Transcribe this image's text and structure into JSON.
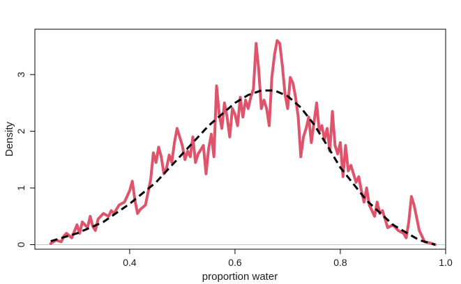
{
  "chart_data": {
    "type": "line",
    "title": "",
    "xlabel": "proportion water",
    "ylabel": "Density",
    "xlim": [
      0.22,
      1.0
    ],
    "ylim": [
      -0.08,
      3.8
    ],
    "x_ticks": [
      0.4,
      0.6,
      0.8,
      1.0
    ],
    "x_tick_labels": [
      "0.4",
      "0.6",
      "0.8",
      "1.0"
    ],
    "y_ticks": [
      0,
      1,
      2,
      3
    ],
    "y_tick_labels": [
      "0",
      "1",
      "2",
      "3"
    ],
    "baseline_y": 0,
    "grid": false,
    "legend": "none",
    "series": [
      {
        "style": "solid",
        "color": "#DF536B",
        "x": [
          0.25,
          0.26,
          0.27,
          0.275,
          0.28,
          0.29,
          0.3,
          0.305,
          0.31,
          0.32,
          0.325,
          0.33,
          0.335,
          0.34,
          0.35,
          0.36,
          0.365,
          0.37,
          0.38,
          0.39,
          0.4,
          0.405,
          0.41,
          0.415,
          0.42,
          0.43,
          0.44,
          0.445,
          0.45,
          0.455,
          0.46,
          0.465,
          0.47,
          0.475,
          0.48,
          0.485,
          0.49,
          0.5,
          0.505,
          0.51,
          0.515,
          0.52,
          0.525,
          0.53,
          0.54,
          0.545,
          0.55,
          0.555,
          0.56,
          0.565,
          0.57,
          0.575,
          0.58,
          0.585,
          0.59,
          0.595,
          0.6,
          0.605,
          0.61,
          0.615,
          0.62,
          0.625,
          0.63,
          0.635,
          0.64,
          0.645,
          0.65,
          0.655,
          0.66,
          0.665,
          0.67,
          0.675,
          0.68,
          0.685,
          0.69,
          0.695,
          0.7,
          0.705,
          0.71,
          0.715,
          0.72,
          0.725,
          0.73,
          0.735,
          0.74,
          0.745,
          0.75,
          0.755,
          0.76,
          0.765,
          0.77,
          0.775,
          0.78,
          0.785,
          0.79,
          0.795,
          0.8,
          0.805,
          0.81,
          0.815,
          0.82,
          0.83,
          0.835,
          0.84,
          0.845,
          0.85,
          0.855,
          0.86,
          0.865,
          0.87,
          0.875,
          0.88,
          0.885,
          0.89,
          0.9,
          0.91,
          0.92,
          0.925,
          0.93,
          0.935,
          0.94,
          0.95,
          0.96,
          0.97,
          0.98
        ],
        "y": [
          0.02,
          0.08,
          0.05,
          0.15,
          0.2,
          0.12,
          0.35,
          0.2,
          0.4,
          0.3,
          0.5,
          0.32,
          0.25,
          0.45,
          0.55,
          0.5,
          0.6,
          0.55,
          0.7,
          0.75,
          0.95,
          1.12,
          0.78,
          0.55,
          0.62,
          0.7,
          1.15,
          1.62,
          1.45,
          1.72,
          1.55,
          1.25,
          1.35,
          1.58,
          1.45,
          1.8,
          2.05,
          1.75,
          1.5,
          1.65,
          1.55,
          1.9,
          1.45,
          1.6,
          1.75,
          1.25,
          1.7,
          1.95,
          1.55,
          2.8,
          2.3,
          2.05,
          2.5,
          2.25,
          1.9,
          2.4,
          2.3,
          2.1,
          2.6,
          2.25,
          2.55,
          2.4,
          2.6,
          2.75,
          3.55,
          3.1,
          2.4,
          2.55,
          2.4,
          2.1,
          2.95,
          3.35,
          3.6,
          3.55,
          3.15,
          2.65,
          2.4,
          2.95,
          2.85,
          2.6,
          2.25,
          1.55,
          1.9,
          2.05,
          2.25,
          1.8,
          2.15,
          2.5,
          2.0,
          2.1,
          1.85,
          2.05,
          1.65,
          2.35,
          1.75,
          1.6,
          1.8,
          1.2,
          1.75,
          1.3,
          1.4,
          1.1,
          1.2,
          0.95,
          0.75,
          1.0,
          0.7,
          0.6,
          0.5,
          0.75,
          0.55,
          0.6,
          0.45,
          0.3,
          0.35,
          0.25,
          0.2,
          0.12,
          0.4,
          0.85,
          0.7,
          0.25,
          0.05,
          0.03,
          0.0
        ]
      },
      {
        "style": "dashed",
        "color": "#000000",
        "x": [
          0.25,
          0.3,
          0.35,
          0.4,
          0.45,
          0.5,
          0.55,
          0.6,
          0.625,
          0.65,
          0.675,
          0.7,
          0.725,
          0.75,
          0.775,
          0.8,
          0.85,
          0.9,
          0.95,
          0.98
        ],
        "y": [
          0.06,
          0.2,
          0.4,
          0.72,
          1.1,
          1.6,
          2.1,
          2.5,
          2.64,
          2.72,
          2.72,
          2.62,
          2.42,
          2.12,
          1.75,
          1.36,
          0.78,
          0.35,
          0.08,
          0.0
        ]
      }
    ]
  }
}
